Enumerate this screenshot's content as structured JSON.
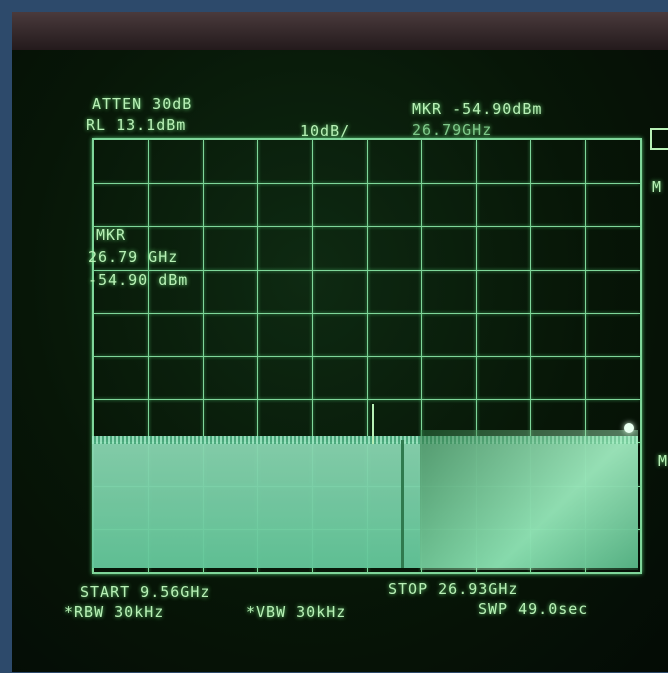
{
  "header": {
    "atten": "ATTEN 30dB",
    "rl": "RL 13.1dBm",
    "scale": "10dB/",
    "mkr_top": "MKR -54.90dBm",
    "mkr_top_freq": "26.79GHz"
  },
  "marker_panel": {
    "label": "MKR",
    "freq": "26.79 GHz",
    "level": "-54.90 dBm"
  },
  "footer": {
    "start": "START 9.56GHz",
    "stop": "STOP 26.93GHz",
    "rbw": "*RBW 30kHz",
    "vbw": "*VBW 30kHz",
    "swp": "SWP 49.0sec"
  },
  "side": {
    "m1": "M",
    "m2": "M"
  },
  "colors": {
    "trace": "#7fd69a",
    "text": "#b8f0b6",
    "noise_fill": "#6ccaa0"
  }
}
